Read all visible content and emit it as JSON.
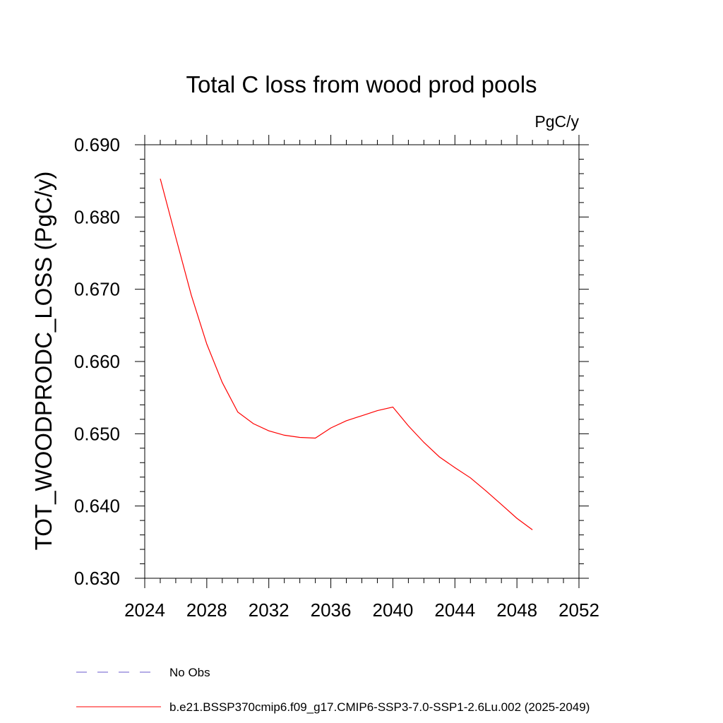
{
  "chart_data": {
    "type": "line",
    "title": "Total C loss from wood prod pools",
    "units": "PgC/y",
    "ylabel": "TOT_WOODPRODC_LOSS  (PgC/y)",
    "xlabel": "",
    "xlim": [
      2024,
      2052
    ],
    "ylim": [
      0.63,
      0.69
    ],
    "x_ticks": [
      "2024",
      "2028",
      "2032",
      "2036",
      "2040",
      "2044",
      "2048",
      "2052"
    ],
    "y_ticks": [
      "0.630",
      "0.640",
      "0.650",
      "0.660",
      "0.670",
      "0.680",
      "0.690"
    ],
    "grid": false,
    "legend_placement": "bottom",
    "series": [
      {
        "name": "b.e21.BSSP370cmip6.f09_g17.CMIP6-SSP3-7.0-SSP1-2.6Lu.002 (2025-2049)",
        "color": "#ff0000",
        "style": "solid",
        "x": [
          2025,
          2026,
          2027,
          2028,
          2029,
          2030,
          2031,
          2032,
          2033,
          2034,
          2035,
          2036,
          2037,
          2038,
          2039,
          2040,
          2041,
          2042,
          2043,
          2044,
          2045,
          2046,
          2047,
          2048,
          2049
        ],
        "y": [
          0.6853,
          0.6772,
          0.6692,
          0.6624,
          0.6571,
          0.653,
          0.6514,
          0.6504,
          0.6498,
          0.6495,
          0.6494,
          0.6508,
          0.6518,
          0.6525,
          0.6532,
          0.6537,
          0.6511,
          0.6488,
          0.6468,
          0.6453,
          0.6439,
          0.6421,
          0.6402,
          0.6383,
          0.6367
        ]
      }
    ],
    "legend": [
      {
        "label": "No Obs",
        "color": "#6a5acd",
        "style": "dashed"
      },
      {
        "label": "b.e21.BSSP370cmip6.f09_g17.CMIP6-SSP3-7.0-SSP1-2.6Lu.002 (2025-2049)",
        "color": "#ff0000",
        "style": "solid"
      }
    ]
  }
}
